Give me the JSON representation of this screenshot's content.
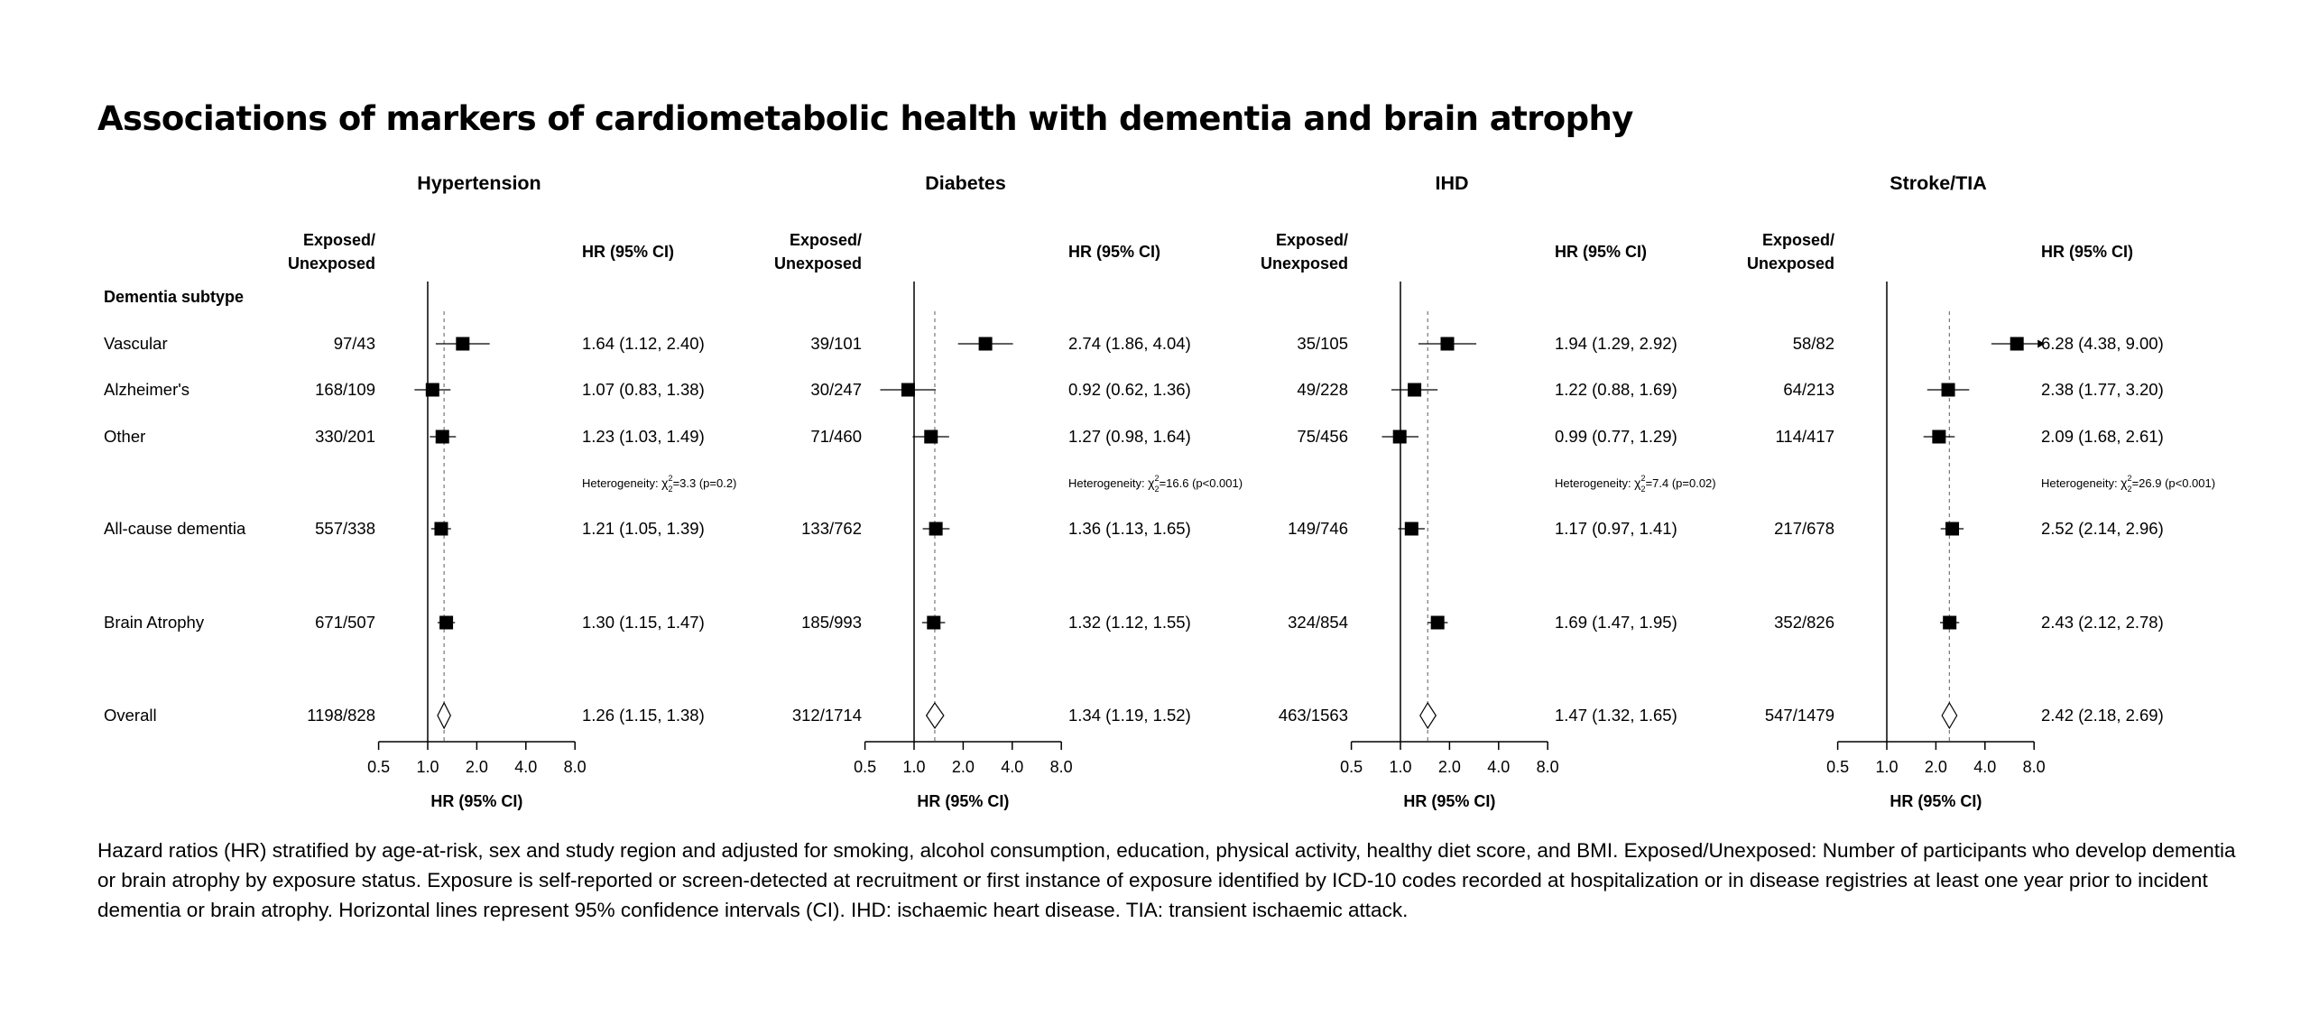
{
  "page": {
    "title": "Associations of markers of cardiometabolic health with dementia and brain atrophy",
    "caption": "Hazard ratios (HR) stratified by age-at-risk, sex and study region and adjusted for smoking, alcohol consumption, education, physical activity, healthy diet score, and BMI. Exposed/Unexposed: Number of participants who develop dementia or brain atrophy by exposure status. Exposure is self-reported or screen-detected at recruitment or first instance of exposure identified by ICD-10 codes recorded at hospitalization or in disease registries at least one year prior to incident dementia or brain atrophy. Horizontal lines represent 95% confidence intervals (CI). IHD: ischaemic heart disease. TIA: transient ischaemic attack."
  },
  "colors": {
    "marker": "#000000",
    "axis": "#000000",
    "reference_line": "#777777",
    "overall_diamond_fill": "#ffffff"
  },
  "chart_data": {
    "type": "forest",
    "row_header": "Dementia subtype",
    "rows": [
      "Vascular",
      "Alzheimer's",
      "Other",
      "All-cause dementia",
      "Brain Atrophy",
      "Overall"
    ],
    "column_headers": {
      "counts": "Exposed/\nUnexposed",
      "estimate": "HR (95% CI)"
    },
    "x": {
      "label": "HR (95% CI)",
      "scale": "log2",
      "range": [
        0.5,
        8.0
      ],
      "ticks": [
        0.5,
        1.0,
        2.0,
        4.0,
        8.0
      ],
      "tick_labels": [
        "0.5",
        "1.0",
        "2.0",
        "4.0",
        "8.0"
      ],
      "null_line": 1.0
    },
    "panels": [
      {
        "title": "Hypertension",
        "overall_hr": 1.26,
        "rows": [
          {
            "counts": "97/43",
            "hr": 1.64,
            "lo": 1.12,
            "hi": 2.4,
            "label": "1.64 (1.12, 2.40)"
          },
          {
            "counts": "168/109",
            "hr": 1.07,
            "lo": 0.83,
            "hi": 1.38,
            "label": "1.07 (0.83, 1.38)"
          },
          {
            "counts": "330/201",
            "hr": 1.23,
            "lo": 1.03,
            "hi": 1.49,
            "label": "1.23 (1.03, 1.49)"
          },
          {
            "counts": "557/338",
            "hr": 1.21,
            "lo": 1.05,
            "hi": 1.39,
            "label": "1.21 (1.05, 1.39)"
          },
          {
            "counts": "671/507",
            "hr": 1.3,
            "lo": 1.15,
            "hi": 1.47,
            "label": "1.30 (1.15, 1.47)"
          },
          {
            "counts": "1198/828",
            "hr": 1.26,
            "lo": 1.15,
            "hi": 1.38,
            "label": "1.26 (1.15, 1.38)",
            "diamond": true
          }
        ],
        "heterogeneity": {
          "prefix": "Heterogeneity: ",
          "chi": "χ",
          "sub": "2",
          "sup": "2",
          "value": "=3.3 (p=0.2)"
        }
      },
      {
        "title": "Diabetes",
        "overall_hr": 1.34,
        "rows": [
          {
            "counts": "39/101",
            "hr": 2.74,
            "lo": 1.86,
            "hi": 4.04,
            "label": "2.74 (1.86, 4.04)"
          },
          {
            "counts": "30/247",
            "hr": 0.92,
            "lo": 0.62,
            "hi": 1.36,
            "label": "0.92 (0.62, 1.36)"
          },
          {
            "counts": "71/460",
            "hr": 1.27,
            "lo": 0.98,
            "hi": 1.64,
            "label": "1.27 (0.98, 1.64)"
          },
          {
            "counts": "133/762",
            "hr": 1.36,
            "lo": 1.13,
            "hi": 1.65,
            "label": "1.36 (1.13, 1.65)"
          },
          {
            "counts": "185/993",
            "hr": 1.32,
            "lo": 1.12,
            "hi": 1.55,
            "label": "1.32 (1.12, 1.55)"
          },
          {
            "counts": "312/1714",
            "hr": 1.34,
            "lo": 1.19,
            "hi": 1.52,
            "label": "1.34 (1.19, 1.52)",
            "diamond": true
          }
        ],
        "heterogeneity": {
          "prefix": "Heterogeneity: ",
          "chi": "χ",
          "sub": "2",
          "sup": "2",
          "value": "=16.6 (p<0.001)"
        }
      },
      {
        "title": "IHD",
        "overall_hr": 1.47,
        "rows": [
          {
            "counts": "35/105",
            "hr": 1.94,
            "lo": 1.29,
            "hi": 2.92,
            "label": "1.94 (1.29, 2.92)"
          },
          {
            "counts": "49/228",
            "hr": 1.22,
            "lo": 0.88,
            "hi": 1.69,
            "label": "1.22 (0.88, 1.69)"
          },
          {
            "counts": "75/456",
            "hr": 0.99,
            "lo": 0.77,
            "hi": 1.29,
            "label": "0.99 (0.77, 1.29)"
          },
          {
            "counts": "149/746",
            "hr": 1.17,
            "lo": 0.97,
            "hi": 1.41,
            "label": "1.17 (0.97, 1.41)"
          },
          {
            "counts": "324/854",
            "hr": 1.69,
            "lo": 1.47,
            "hi": 1.95,
            "label": "1.69 (1.47, 1.95)"
          },
          {
            "counts": "463/1563",
            "hr": 1.47,
            "lo": 1.32,
            "hi": 1.65,
            "label": "1.47 (1.32, 1.65)",
            "diamond": true
          }
        ],
        "heterogeneity": {
          "prefix": "Heterogeneity: ",
          "chi": "χ",
          "sub": "2",
          "sup": "2",
          "value": "=7.4 (p=0.02)"
        }
      },
      {
        "title": "Stroke/TIA",
        "overall_hr": 2.42,
        "rows": [
          {
            "counts": "58/82",
            "hr": 6.28,
            "lo": 4.38,
            "hi": 9.0,
            "label": "6.28 (4.38, 9.00)",
            "arrow": true
          },
          {
            "counts": "64/213",
            "hr": 2.38,
            "lo": 1.77,
            "hi": 3.2,
            "label": "2.38 (1.77, 3.20)"
          },
          {
            "counts": "114/417",
            "hr": 2.09,
            "lo": 1.68,
            "hi": 2.61,
            "label": "2.09 (1.68, 2.61)"
          },
          {
            "counts": "217/678",
            "hr": 2.52,
            "lo": 2.14,
            "hi": 2.96,
            "label": "2.52 (2.14, 2.96)"
          },
          {
            "counts": "352/826",
            "hr": 2.43,
            "lo": 2.12,
            "hi": 2.78,
            "label": "2.43 (2.12, 2.78)"
          },
          {
            "counts": "547/1479",
            "hr": 2.42,
            "lo": 2.18,
            "hi": 2.69,
            "label": "2.42 (2.18, 2.69)",
            "diamond": true
          }
        ],
        "heterogeneity": {
          "prefix": "Heterogeneity: ",
          "chi": "χ",
          "sub": "2",
          "sup": "2",
          "value": "=26.9 (p<0.001)"
        }
      }
    ]
  }
}
